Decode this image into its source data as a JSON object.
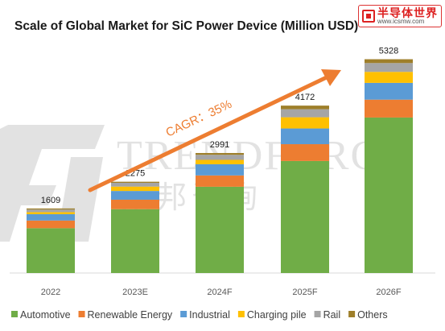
{
  "chart_data": {
    "type": "bar",
    "stacked": true,
    "title": "Scale of Global Market for SiC Power Device (Million USD)",
    "categories": [
      "2022",
      "2023E",
      "2024F",
      "2025F",
      "2026F"
    ],
    "totals": [
      1609,
      2275,
      2991,
      4172,
      5328
    ],
    "series": [
      {
        "name": "Automotive",
        "color": "#70ad47",
        "values": [
          1117,
          1591,
          2150,
          2792,
          3875
        ]
      },
      {
        "name": "Renewable Energy",
        "color": "#ed7d31",
        "values": [
          191,
          236,
          282,
          419,
          446
        ]
      },
      {
        "name": "Industrial",
        "color": "#5b9bd5",
        "values": [
          159,
          218,
          279,
          391,
          418
        ]
      },
      {
        "name": "Charging pile",
        "color": "#ffc000",
        "values": [
          51,
          109,
          109,
          280,
          274
        ]
      },
      {
        "name": "Rail",
        "color": "#a5a5a5",
        "values": [
          64,
          94,
          126,
          200,
          220
        ]
      },
      {
        "name": "Others",
        "color": "#9e7f2a",
        "values": [
          27,
          27,
          45,
          90,
          95
        ]
      }
    ],
    "ylim": [
      0,
      5600
    ],
    "grid": false,
    "legend_position": "bottom",
    "annotation": "CAGR：35%",
    "annotation_color": "#ed7d31"
  },
  "watermark": {
    "text": "TRENDFORCE",
    "subtext": "集邦咨询",
    "badge_main": "半导体世界",
    "badge_sub": "www.icsmw.com"
  }
}
